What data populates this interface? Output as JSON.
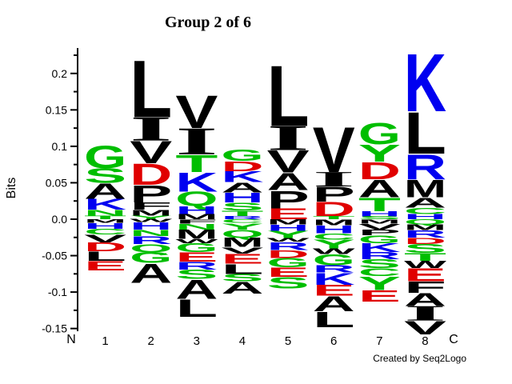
{
  "figure": {
    "title": "Group 2 of 6",
    "ylabel": "Bits",
    "x_left_label": "N",
    "x_right_label": "C",
    "credit": "Created by Seq2Logo"
  },
  "chart_data": {
    "type": "sequence_logo",
    "title": "Group 2 of 6",
    "ylabel": "Bits",
    "unit": "bits",
    "ylim": [
      -0.16,
      0.235
    ],
    "yticks_major": [
      0.2,
      0.15,
      0.1,
      0.05,
      0.0,
      -0.05,
      -0.1,
      -0.15
    ],
    "ytick_labels": [
      "0.2",
      "0.15",
      "0.1",
      "0.05",
      "0.0",
      "-0.05",
      "-0.1",
      "-0.15"
    ],
    "yticks_minor": [
      0.225,
      0.175,
      0.125,
      0.075,
      0.025,
      -0.025,
      -0.075,
      -0.125
    ],
    "position_labels": [
      "1",
      "2",
      "3",
      "4",
      "5",
      "6",
      "7",
      "8"
    ],
    "x_end_labels": [
      "N",
      "C"
    ],
    "residue_colors": {
      "hydrophobic": {
        "color": "#000000",
        "letters": "AVLIPFMW"
      },
      "acidic": {
        "color": "#E00000",
        "letters": "DE"
      },
      "basic": {
        "color": "#0000F0",
        "letters": "KRH"
      },
      "polar": {
        "color": "#00BE00",
        "letters": "GSTYCNQ"
      }
    },
    "positions": [
      {
        "label": "1",
        "above": [
          [
            "G",
            0.031
          ],
          [
            "S",
            0.02
          ],
          [
            "A",
            0.022
          ],
          [
            "K",
            0.015
          ],
          [
            "N",
            0.008
          ],
          [
            "T",
            0.005
          ]
        ],
        "below": [
          [
            "M",
            0.005
          ],
          [
            "H",
            0.008
          ],
          [
            "C",
            0.008
          ],
          [
            "V",
            0.011
          ],
          [
            "D",
            0.012
          ],
          [
            "L",
            0.013
          ],
          [
            "E",
            0.013
          ]
        ]
      },
      {
        "label": "2",
        "above": [
          [
            "L",
            0.08
          ],
          [
            "I",
            0.032
          ],
          [
            "V",
            0.031
          ],
          [
            "D",
            0.03
          ],
          [
            "P",
            0.024
          ],
          [
            "F",
            0.01
          ],
          [
            "M",
            0.008
          ],
          [
            "Y",
            0.005
          ]
        ],
        "below": [
          [
            "W",
            0.004
          ],
          [
            "H",
            0.01
          ],
          [
            "N",
            0.009
          ],
          [
            "R",
            0.011
          ],
          [
            "Q",
            0.011
          ],
          [
            "G",
            0.015
          ],
          [
            "A",
            0.027
          ]
        ]
      },
      {
        "label": "3",
        "above": [
          [
            "V",
            0.046
          ],
          [
            "I",
            0.036
          ],
          [
            "T",
            0.024
          ],
          [
            "K",
            0.027
          ],
          [
            "Q",
            0.02
          ],
          [
            "H",
            0.011
          ],
          [
            "M",
            0.007
          ]
        ],
        "below": [
          [
            "F",
            0.006
          ],
          [
            "N",
            0.008
          ],
          [
            "M",
            0.013
          ],
          [
            "W",
            0.006
          ],
          [
            "G",
            0.012
          ],
          [
            "E",
            0.013
          ],
          [
            "R",
            0.011
          ],
          [
            "S",
            0.013
          ],
          [
            "A",
            0.027
          ],
          [
            "L",
            0.025
          ]
        ]
      },
      {
        "label": "4",
        "above": [
          [
            "G",
            0.016
          ],
          [
            "D",
            0.014
          ],
          [
            "K",
            0.015
          ],
          [
            "A",
            0.014
          ],
          [
            "H",
            0.014
          ],
          [
            "S",
            0.011
          ],
          [
            "T",
            0.008
          ],
          [
            "R",
            0.004
          ]
        ],
        "below": [
          [
            "C",
            0.005
          ],
          [
            "Y",
            0.009
          ],
          [
            "Q",
            0.011
          ],
          [
            "M",
            0.013
          ],
          [
            "V",
            0.009
          ],
          [
            "E",
            0.014
          ],
          [
            "L",
            0.014
          ],
          [
            "S",
            0.01
          ],
          [
            "A",
            0.017
          ]
        ]
      },
      {
        "label": "5",
        "above": [
          [
            "L",
            0.085
          ],
          [
            "I",
            0.033
          ],
          [
            "V",
            0.031
          ],
          [
            "A",
            0.024
          ],
          [
            "P",
            0.025
          ],
          [
            "E",
            0.015
          ]
        ],
        "below": [
          [
            "M",
            0.007
          ],
          [
            "H",
            0.009
          ],
          [
            "Y",
            0.01
          ],
          [
            "W",
            0.005
          ],
          [
            "R",
            0.011
          ],
          [
            "D",
            0.011
          ],
          [
            "G",
            0.013
          ],
          [
            "E",
            0.013
          ],
          [
            "S",
            0.016
          ]
        ]
      },
      {
        "label": "6",
        "above": [
          [
            "V",
            0.063
          ],
          [
            "I",
            0.02
          ],
          [
            "P",
            0.021
          ],
          [
            "D",
            0.02
          ],
          [
            "T",
            0.004
          ]
        ],
        "below": [
          [
            "M",
            0.008
          ],
          [
            "H",
            0.011
          ],
          [
            "C",
            0.009
          ],
          [
            "Y",
            0.012
          ],
          [
            "W",
            0.008
          ],
          [
            "G",
            0.015
          ],
          [
            "R",
            0.01
          ],
          [
            "K",
            0.017
          ],
          [
            "E",
            0.015
          ],
          [
            "A",
            0.021
          ],
          [
            "L",
            0.022
          ]
        ]
      },
      {
        "label": "7",
        "above": [
          [
            "G",
            0.03
          ],
          [
            "Y",
            0.024
          ],
          [
            "D",
            0.024
          ],
          [
            "A",
            0.025
          ],
          [
            "T",
            0.019
          ],
          [
            "H",
            0.007
          ],
          [
            "S",
            0.004
          ]
        ],
        "below": [
          [
            "M",
            0.006
          ],
          [
            "V",
            0.008
          ],
          [
            "P",
            0.008
          ],
          [
            "G",
            0.011
          ],
          [
            "K",
            0.012
          ],
          [
            "R",
            0.01
          ],
          [
            "S",
            0.012
          ],
          [
            "C",
            0.011
          ],
          [
            "Y",
            0.019
          ],
          [
            "E",
            0.016
          ]
        ]
      },
      {
        "label": "8",
        "above": [
          [
            "K",
            0.081
          ],
          [
            "L",
            0.058
          ],
          [
            "R",
            0.035
          ],
          [
            "M",
            0.025
          ],
          [
            "A",
            0.014
          ],
          [
            "C",
            0.009
          ],
          [
            "H",
            0.007
          ]
        ],
        "below": [
          [
            "Q",
            0.007
          ],
          [
            "M",
            0.008
          ],
          [
            "R",
            0.01
          ],
          [
            "D",
            0.009
          ],
          [
            "S",
            0.012
          ],
          [
            "T",
            0.011
          ],
          [
            "W",
            0.01
          ],
          [
            "E",
            0.018
          ],
          [
            "F",
            0.016
          ],
          [
            "A",
            0.018
          ],
          [
            "I",
            0.02
          ],
          [
            "V",
            0.019
          ]
        ]
      }
    ]
  }
}
